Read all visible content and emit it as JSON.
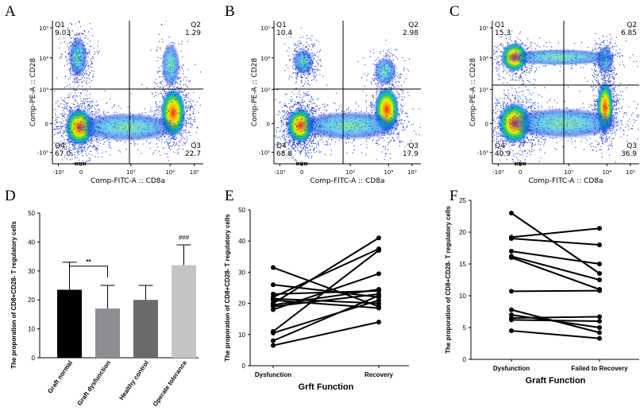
{
  "chart_data": [
    {
      "type": "scatter",
      "panel": "A",
      "xlabel": "Comp-FITC-A :: CD8a",
      "ylabel": "Comp-PE-A :: CD28",
      "x_ticks": [
        "-10³",
        "0",
        "10³",
        "10⁴",
        "10⁵"
      ],
      "y_ticks": [
        "-10³",
        "0",
        "10³",
        "10⁴",
        "10⁵"
      ],
      "quadrants": [
        {
          "name": "Q1",
          "value": "9.03"
        },
        {
          "name": "Q2",
          "value": "1.29"
        },
        {
          "name": "Q3",
          "value": "22.7"
        },
        {
          "name": "Q4",
          "value": "67.0"
        }
      ]
    },
    {
      "type": "scatter",
      "panel": "B",
      "xlabel": "Comp-FITC-A :: CD8a",
      "ylabel": "Comp-PE-A :: CD28",
      "x_ticks": [
        "-10³",
        "0",
        "10³",
        "10⁴",
        "10⁵"
      ],
      "y_ticks": [
        "-10³",
        "0",
        "10³",
        "10⁴",
        "10⁵"
      ],
      "quadrants": [
        {
          "name": "Q1",
          "value": "10.4"
        },
        {
          "name": "Q2",
          "value": "2.98"
        },
        {
          "name": "Q3",
          "value": "17.9"
        },
        {
          "name": "Q4",
          "value": "68.8"
        }
      ]
    },
    {
      "type": "scatter",
      "panel": "C",
      "xlabel": "Comp-FITC-A :: CD8a",
      "ylabel": "Comp-PE-A :: CD28",
      "x_ticks": [
        "-10³",
        "0",
        "10³",
        "10⁴",
        "10⁵"
      ],
      "y_ticks": [
        "-10³",
        "0",
        "10³",
        "10⁴",
        "10⁵"
      ],
      "quadrants": [
        {
          "name": "Q1",
          "value": "15.3"
        },
        {
          "name": "Q2",
          "value": "6.85"
        },
        {
          "name": "Q3",
          "value": "36.9"
        },
        {
          "name": "Q4",
          "value": "40.9"
        }
      ]
    },
    {
      "type": "bar",
      "panel": "D",
      "ylabel": "The proporation of CD8+CD28- T regulatory cells",
      "ylim": [
        0,
        50
      ],
      "y_ticks": [
        0,
        10,
        20,
        30,
        40,
        50
      ],
      "categories": [
        "Graft normal",
        "Graft dysfunction",
        "Healthy control",
        "Operate tolerance"
      ],
      "values": [
        23.5,
        17,
        20,
        32
      ],
      "errors": [
        9.5,
        8,
        5,
        7
      ],
      "colors": [
        "#000000",
        "#8e8e92",
        "#6b6b6b",
        "#c4c4c4"
      ],
      "annotations": [
        {
          "text": "**",
          "between": [
            "Graft normal",
            "Graft dysfunction"
          ]
        },
        {
          "text": "###",
          "bar": "Operate tolerance"
        }
      ]
    },
    {
      "type": "line",
      "panel": "E",
      "ylabel": "The proporation of CD8+CD28- T regulatory cells",
      "xlabel": "Grft Function",
      "categories": [
        "Dysfunction",
        "Recovery"
      ],
      "ylim": [
        0,
        50
      ],
      "y_ticks": [
        0,
        10,
        20,
        30,
        40,
        50
      ],
      "pairs": [
        [
          31.5,
          19
        ],
        [
          26,
          22
        ],
        [
          23,
          24
        ],
        [
          22,
          37.5
        ],
        [
          21.5,
          20
        ],
        [
          20,
          41
        ],
        [
          19.5,
          24.5
        ],
        [
          18,
          29.5
        ],
        [
          11,
          37
        ],
        [
          10.5,
          21
        ],
        [
          8,
          22.5
        ],
        [
          6.5,
          14
        ],
        [
          21,
          18.5
        ],
        [
          19,
          23
        ]
      ]
    },
    {
      "type": "line",
      "panel": "F",
      "ylabel": "The proporation of CD8+CD28- T regulatory cells",
      "xlabel": "Graft Function",
      "categories": [
        "Dysfunction",
        "Failed to Recovery"
      ],
      "ylim": [
        0,
        25
      ],
      "y_ticks": [
        0,
        5,
        10,
        15,
        20,
        25
      ],
      "pairs": [
        [
          23,
          13.5
        ],
        [
          19.2,
          20.6
        ],
        [
          19,
          18
        ],
        [
          17,
          15
        ],
        [
          16,
          11
        ],
        [
          10.7,
          10.8
        ],
        [
          7.8,
          4.2
        ],
        [
          7,
          5
        ],
        [
          6.5,
          6.7
        ],
        [
          6.2,
          6
        ],
        [
          4.5,
          3.3
        ],
        [
          16.2,
          12.5
        ]
      ]
    }
  ]
}
